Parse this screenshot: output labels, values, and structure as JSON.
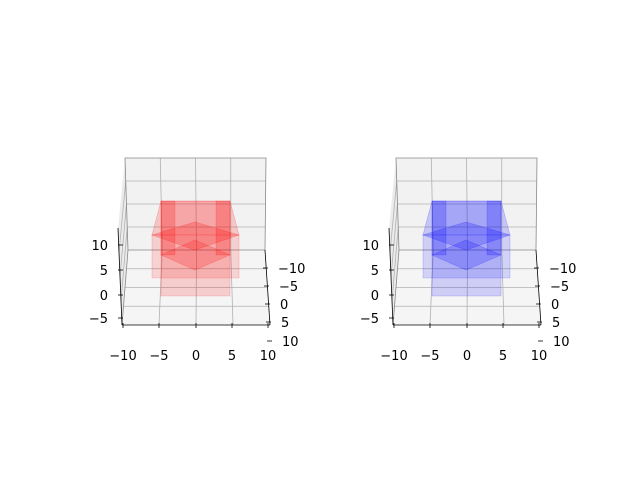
{
  "chart_data": [
    {
      "type": "3d-surface",
      "title": "",
      "color": "#ff0000",
      "x_ticks": [
        "−10",
        "−5",
        "0",
        "5",
        "10"
      ],
      "y_ticks": [
        "−10",
        "−5",
        "0",
        "5",
        "10"
      ],
      "z_ticks": [
        "−5",
        "0",
        "5",
        "10"
      ],
      "xlim": [
        -10,
        10
      ],
      "ylim": [
        -10,
        10
      ],
      "zlim": [
        -5,
        10
      ],
      "grid": true
    },
    {
      "type": "3d-surface",
      "title": "",
      "color": "#0000ff",
      "x_ticks": [
        "−10",
        "−5",
        "0",
        "5",
        "10"
      ],
      "y_ticks": [
        "−10",
        "−5",
        "0",
        "5",
        "10"
      ],
      "z_ticks": [
        "−5",
        "0",
        "5",
        "10"
      ],
      "xlim": [
        -10,
        10
      ],
      "ylim": [
        -10,
        10
      ],
      "zlim": [
        -5,
        10
      ],
      "grid": true
    }
  ]
}
